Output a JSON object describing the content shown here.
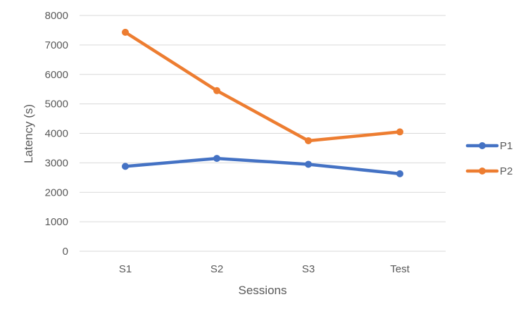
{
  "chart_data": {
    "type": "line",
    "categories": [
      "S1",
      "S2",
      "S3",
      "Test"
    ],
    "series": [
      {
        "name": "P1",
        "values": [
          2880,
          3150,
          2950,
          2630
        ],
        "color": "#4472C4"
      },
      {
        "name": "P2",
        "values": [
          7430,
          5450,
          3750,
          4050
        ],
        "color": "#ED7D31"
      }
    ],
    "xlabel": "Sessions",
    "ylabel": "Latency (s)",
    "ylim": [
      0,
      8000
    ],
    "yticks": [
      0,
      1000,
      2000,
      3000,
      4000,
      5000,
      6000,
      7000,
      8000
    ],
    "grid": true,
    "legend_position": "right"
  }
}
